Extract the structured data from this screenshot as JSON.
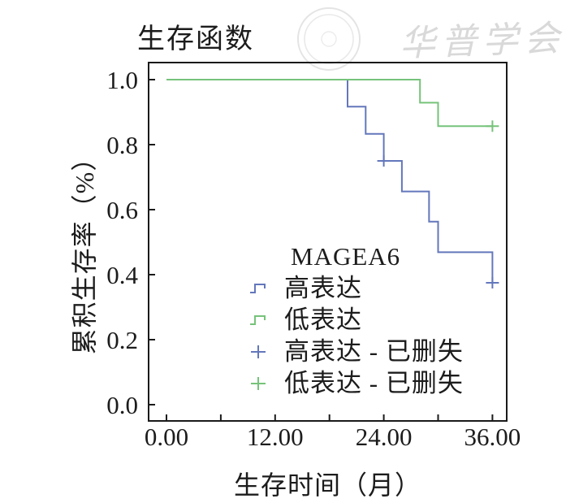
{
  "window": {
    "background": "#ffffff"
  },
  "watermark": {
    "text": "华普学会",
    "seal_icon": "circular-seal",
    "color": "#d9d9d9"
  },
  "title": "生存函数",
  "axes": {
    "x": {
      "label": "生存时间（月）",
      "tick_labels": [
        "0.00",
        "12.00",
        "24.00",
        "36.00"
      ],
      "major_tick_values": [
        0,
        12,
        24,
        36
      ],
      "minor_tick_values": [
        6,
        18,
        30
      ]
    },
    "y": {
      "label": "累积生存率（%）",
      "tick_labels": [
        "0.0",
        "0.2",
        "0.4",
        "0.6",
        "0.8",
        "1.0"
      ],
      "tick_values": [
        0.0,
        0.2,
        0.4,
        0.6,
        0.8,
        1.0
      ]
    }
  },
  "legend": {
    "title": "MAGEA6",
    "items": [
      {
        "label": "高表达",
        "symbol": "step-line",
        "color": "#6377bb"
      },
      {
        "label": "低表达",
        "symbol": "step-line",
        "color": "#76c37a"
      },
      {
        "label": "高表达 - 已删失",
        "symbol": "plus-censor",
        "color": "#6377bb"
      },
      {
        "label": "低表达 - 已删失",
        "symbol": "plus-censor",
        "color": "#76c37a"
      }
    ]
  },
  "colors": {
    "high_expression": "#6377bb",
    "low_expression": "#76c37a",
    "axis": "#1a1a1a",
    "text": "#1c1c1c"
  },
  "chart_data": {
    "type": "line",
    "subtype": "kaplan-meier-step",
    "title": "生存函数",
    "xlabel": "生存时间（月）",
    "ylabel": "累积生存率（%）",
    "xlim": [
      -2,
      37.6
    ],
    "ylim": [
      -0.05,
      1.05
    ],
    "x_ticks": [
      0,
      6,
      12,
      18,
      24,
      30,
      36
    ],
    "x_major_tick_labels": [
      "0.00",
      "12.00",
      "24.00",
      "36.00"
    ],
    "y_ticks": [
      0.0,
      0.2,
      0.4,
      0.6,
      0.8,
      1.0
    ],
    "grid": false,
    "legend_title": "MAGEA6",
    "legend_position": "inside-lower-center",
    "series": [
      {
        "name": "高表达",
        "color": "#6377bb",
        "steps": [
          [
            0,
            1.0
          ],
          [
            20,
            0.917
          ],
          [
            22,
            0.833
          ],
          [
            24,
            0.75
          ],
          [
            26,
            0.656
          ],
          [
            29,
            0.563
          ],
          [
            30,
            0.469
          ],
          [
            36,
            0.375
          ]
        ],
        "censored": [
          [
            24,
            0.75
          ],
          [
            36,
            0.375
          ]
        ],
        "end_month": 36
      },
      {
        "name": "低表达",
        "color": "#76c37a",
        "steps": [
          [
            0,
            1.0
          ],
          [
            28,
            0.929
          ],
          [
            30,
            0.857
          ]
        ],
        "censored": [
          [
            36,
            0.857
          ]
        ],
        "end_month": 36
      }
    ]
  }
}
